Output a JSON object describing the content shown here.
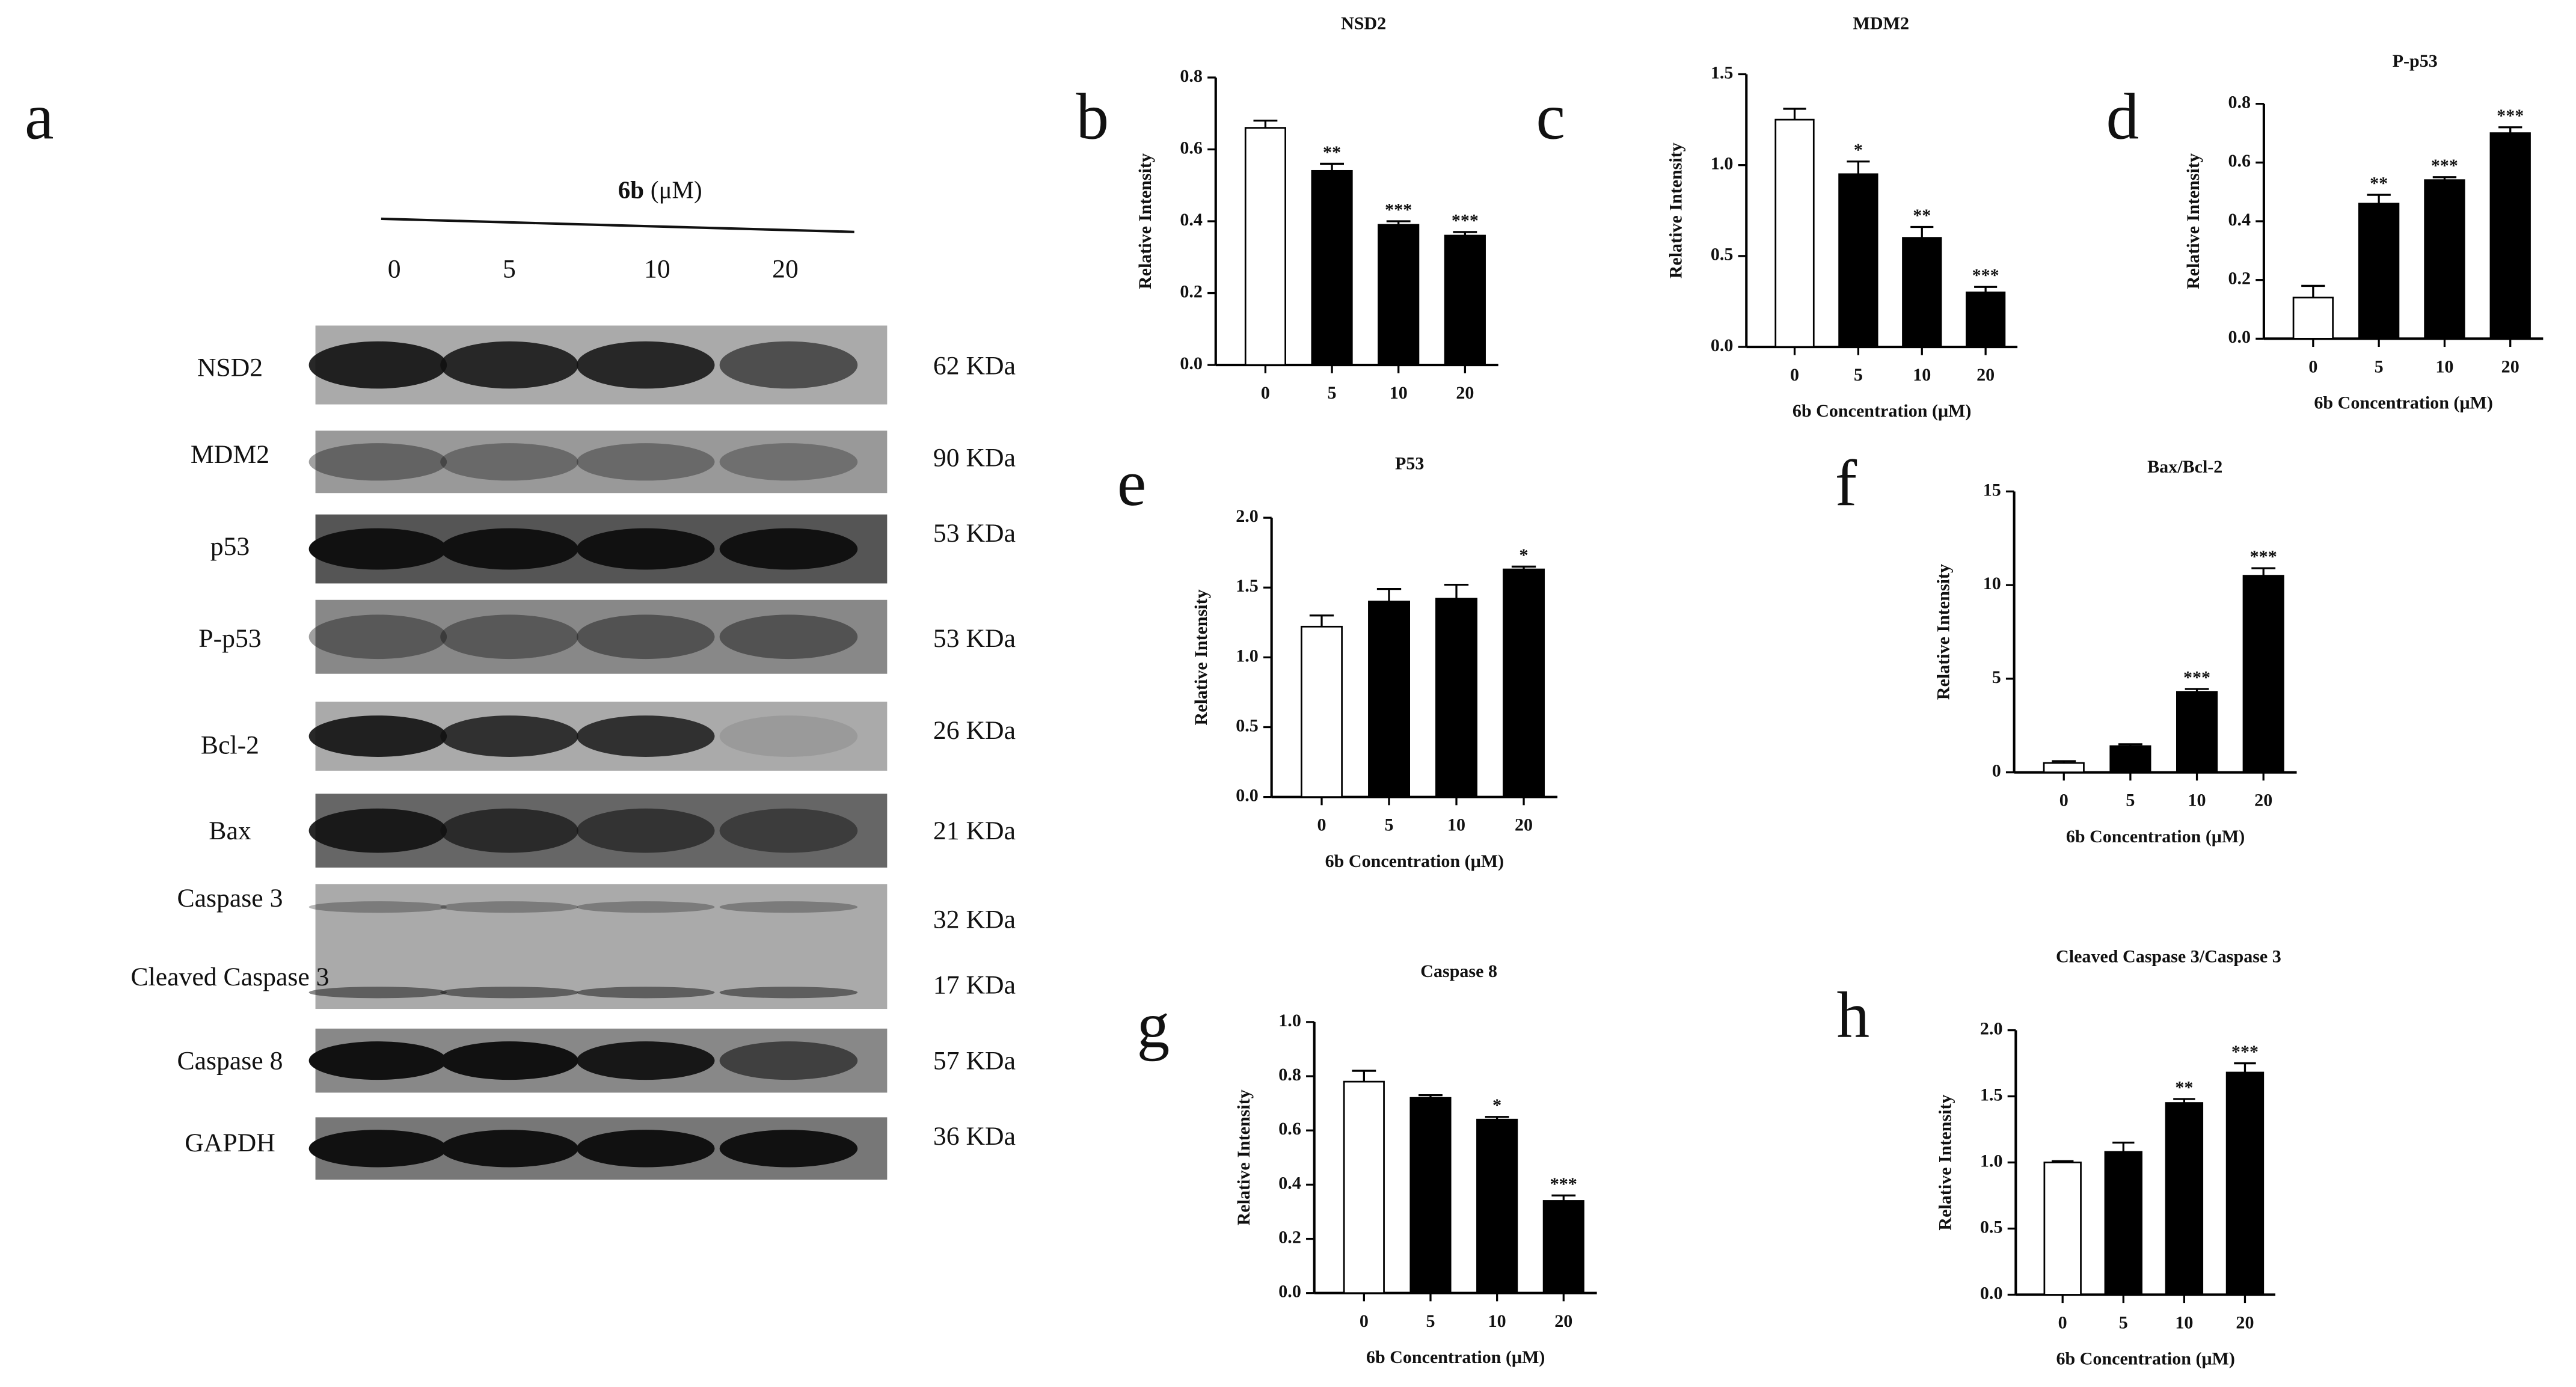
{
  "blot": {
    "panel": "a",
    "compound": "6b",
    "unit": "(μM)",
    "lanes": [
      "0",
      "5",
      "10",
      "20"
    ],
    "rows": [
      {
        "protein": "NSD2",
        "size": "62 KDa"
      },
      {
        "protein": "MDM2",
        "size": "90 KDa"
      },
      {
        "protein": "p53",
        "size": "53 KDa"
      },
      {
        "protein": "P-p53",
        "size": "53 KDa"
      },
      {
        "protein": "Bcl-2",
        "size": "26 KDa"
      },
      {
        "protein": "Bax",
        "size": "21 KDa"
      },
      {
        "protein": "Caspase 3",
        "size": "32 KDa"
      },
      {
        "protein": "Cleaved Caspase 3",
        "size": "17 KDa"
      },
      {
        "protein": "Caspase 8",
        "size": "57 KDa"
      },
      {
        "protein": "GAPDH",
        "size": "36 KDa"
      }
    ]
  },
  "chart_data": [
    {
      "type": "bar",
      "panel": "b",
      "title": "NSD2",
      "ylabel": "Relative Intensity",
      "categories": [
        "0",
        "5",
        "10",
        "20"
      ],
      "values": [
        0.66,
        0.54,
        0.39,
        0.36
      ],
      "errors": [
        0.02,
        0.02,
        0.01,
        0.01
      ],
      "annotations": [
        null,
        "**",
        "***",
        "***"
      ],
      "colors": [
        "#ffffff",
        "#000000",
        "#000000",
        "#000000"
      ],
      "ylim": [
        0,
        0.8
      ],
      "yticks": [
        {
          "value": 0,
          "label": "0.0"
        },
        0.2,
        0.4,
        0.6,
        0.8
      ]
    },
    {
      "type": "bar",
      "panel": "c",
      "title": "MDM2",
      "ylabel": "Relative Intensity",
      "xlabel": "6b Concentration (μM)",
      "categories": [
        "0",
        "5",
        "10",
        "20"
      ],
      "values": [
        1.25,
        0.95,
        0.6,
        0.3
      ],
      "errors": [
        0.06,
        0.07,
        0.06,
        0.03
      ],
      "annotations": [
        null,
        "*",
        "**",
        "***"
      ],
      "colors": [
        "#ffffff",
        "#000000",
        "#000000",
        "#000000"
      ],
      "ylim": [
        0,
        1.5
      ],
      "yticks": [
        {
          "value": 0,
          "label": "0.0"
        },
        0.5,
        {
          "value": 1,
          "label": "1.0"
        },
        1.5
      ]
    },
    {
      "type": "bar",
      "panel": "d",
      "title": "P-p53",
      "ylabel": "Relative Intensity",
      "xlabel": "6b Concentration (μM)",
      "categories": [
        "0",
        "5",
        "10",
        "20"
      ],
      "values": [
        0.14,
        0.46,
        0.54,
        0.7
      ],
      "errors": [
        0.04,
        0.03,
        0.01,
        0.02
      ],
      "annotations": [
        null,
        "**",
        "***",
        "***"
      ],
      "colors": [
        "#ffffff",
        "#000000",
        "#000000",
        "#000000"
      ],
      "ylim": [
        0,
        0.8
      ],
      "yticks": [
        {
          "value": 0,
          "label": "0.0"
        },
        0.2,
        0.4,
        0.6,
        0.8
      ]
    },
    {
      "type": "bar",
      "panel": "e",
      "title": "P53",
      "ylabel": "Relative Intensity",
      "xlabel": "6b Concentration (μM)",
      "categories": [
        "0",
        "5",
        "10",
        "20"
      ],
      "values": [
        1.22,
        1.4,
        1.42,
        1.63
      ],
      "errors": [
        0.08,
        0.09,
        0.1,
        0.02
      ],
      "annotations": [
        null,
        null,
        null,
        "*"
      ],
      "colors": [
        "#ffffff",
        "#000000",
        "#000000",
        "#000000"
      ],
      "ylim": [
        0,
        2
      ],
      "yticks": [
        {
          "value": 0,
          "label": "0.0"
        },
        0.5,
        {
          "value": 1,
          "label": "1.0"
        },
        1.5,
        {
          "value": 2,
          "label": "2.0"
        }
      ]
    },
    {
      "type": "bar",
      "panel": "f",
      "title": "Bax/Bcl-2",
      "ylabel": "Relative Intensity",
      "xlabel": "6b Concentration (μM)",
      "categories": [
        "0",
        "5",
        "10",
        "20"
      ],
      "values": [
        0.5,
        1.4,
        4.3,
        10.5
      ],
      "errors": [
        0.1,
        0.1,
        0.15,
        0.4
      ],
      "annotations": [
        null,
        null,
        "***",
        "***"
      ],
      "colors": [
        "#ffffff",
        "#000000",
        "#000000",
        "#000000"
      ],
      "ylim": [
        0,
        15
      ],
      "yticks": [
        0,
        5,
        10,
        15
      ]
    },
    {
      "type": "bar",
      "panel": "g",
      "title": "Caspase 8",
      "ylabel": "Relative Intensity",
      "xlabel": "6b Concentration (μM)",
      "categories": [
        "0",
        "5",
        "10",
        "20"
      ],
      "values": [
        0.78,
        0.72,
        0.64,
        0.34
      ],
      "errors": [
        0.04,
        0.01,
        0.01,
        0.02
      ],
      "annotations": [
        null,
        null,
        "*",
        "***"
      ],
      "colors": [
        "#ffffff",
        "#000000",
        "#000000",
        "#000000"
      ],
      "ylim": [
        0,
        1
      ],
      "yticks": [
        {
          "value": 0,
          "label": "0.0"
        },
        0.2,
        0.4,
        0.6,
        0.8,
        {
          "value": 1,
          "label": "1.0"
        }
      ]
    },
    {
      "type": "bar",
      "panel": "h",
      "title": "Cleaved Caspase 3/Caspase 3",
      "ylabel": "Relative Intensity",
      "xlabel": "6b Concentration (μM)",
      "categories": [
        "0",
        "5",
        "10",
        "20"
      ],
      "values": [
        1.0,
        1.08,
        1.45,
        1.68
      ],
      "errors": [
        0.01,
        0.07,
        0.03,
        0.07
      ],
      "annotations": [
        null,
        null,
        "**",
        "***"
      ],
      "colors": [
        "#ffffff",
        "#000000",
        "#000000",
        "#000000"
      ],
      "ylim": [
        0,
        2
      ],
      "yticks": [
        {
          "value": 0,
          "label": "0.0"
        },
        0.5,
        {
          "value": 1,
          "label": "1.0"
        },
        1.5,
        {
          "value": 2,
          "label": "2.0"
        }
      ]
    }
  ]
}
